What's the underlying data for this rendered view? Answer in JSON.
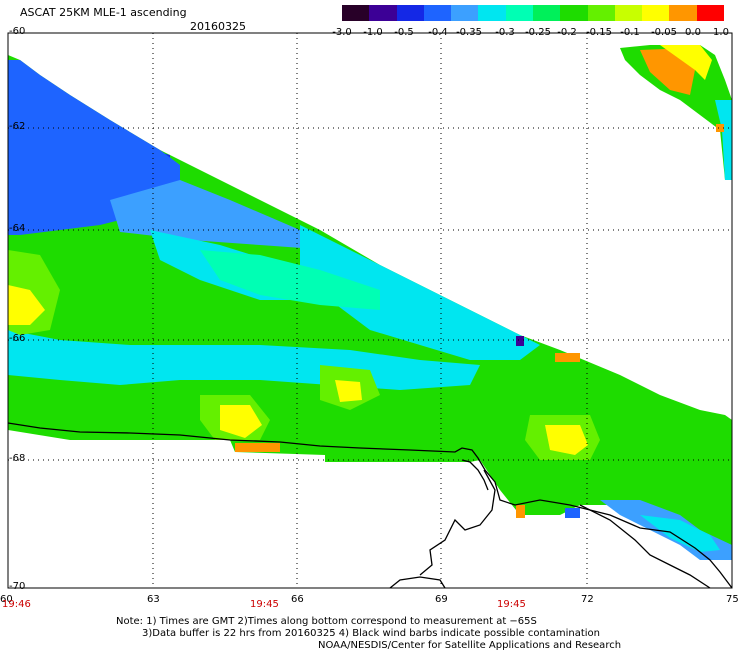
{
  "header": {
    "title": "ASCAT 25KM MLE-1 ascending",
    "date": "20160325"
  },
  "colorbar": {
    "colors": [
      "#280028",
      "#3c0096",
      "#1428e6",
      "#1e64ff",
      "#3ca0ff",
      "#00e6f0",
      "#00ffb4",
      "#00f05a",
      "#1edc00",
      "#64f000",
      "#c8ff00",
      "#ffff00",
      "#ff9600",
      "#ff0000"
    ],
    "labels": [
      "-3.0",
      "-1.0",
      "-0.5",
      "-0.4",
      "-0.35",
      "-0.3",
      "-0.25",
      "-0.2",
      "-0.15",
      "-0.1",
      "-0.05",
      "0.0",
      "1.0"
    ]
  },
  "map": {
    "lat_labels": [
      "-60",
      "-62",
      "-64",
      "-66",
      "-68",
      "-70"
    ],
    "lon_labels": [
      "60",
      "63",
      "66",
      "69",
      "72",
      "75"
    ],
    "time_labels": [
      "19:46",
      "19:45",
      "19:45"
    ],
    "colors": {
      "sw_blue": "#1428e6",
      "sw_blue2": "#1e64ff",
      "light_blue": "#3ca0ff",
      "cyan": "#00e6f0",
      "aqua": "#00ffb4",
      "green": "#1edc00",
      "lime": "#64f000",
      "yellow": "#ffff00",
      "orange": "#ff9600",
      "red": "#ff0000"
    }
  },
  "notes": {
    "line1": "Note: 1) Times are GMT 2)Times along bottom correspond to measurement at −65S",
    "line2": "3)Data buffer is 22 hrs from 20160325 4) Black wind barbs indicate possible contamination",
    "line3": "NOAA/NESDIS/Center for Satellite Applications and Research"
  }
}
